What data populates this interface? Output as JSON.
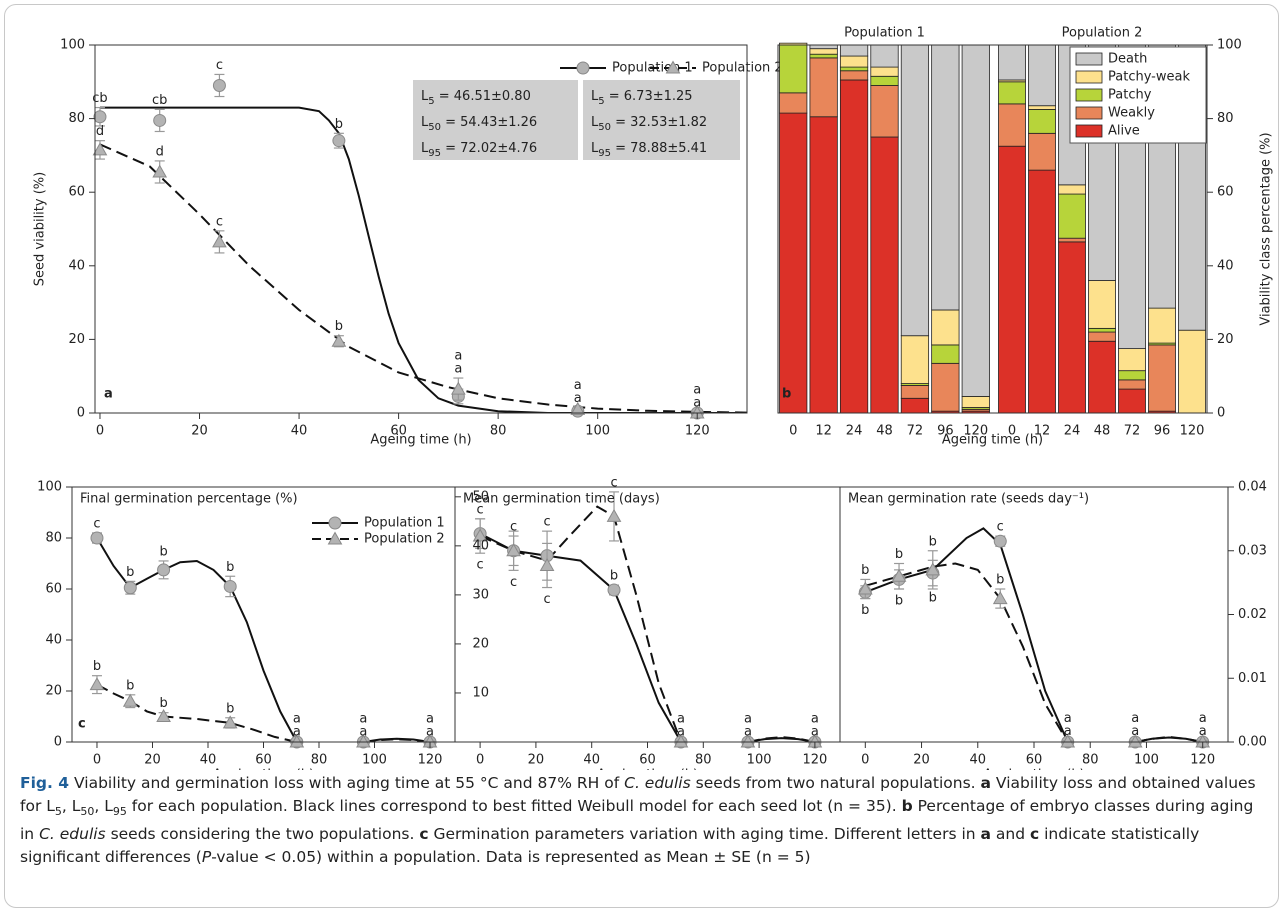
{
  "chart_data": [
    {
      "type": "scatter",
      "panel": "a",
      "xlabel": "Ageing time (h)",
      "ylabel": "Seed viability (%)",
      "xlim": [
        -1,
        130
      ],
      "ylim": [
        0,
        100
      ],
      "xticks": [
        0,
        20,
        40,
        60,
        80,
        100,
        120
      ],
      "yticks": [
        0,
        20,
        40,
        60,
        80,
        100
      ],
      "series": [
        {
          "name": "Population 1",
          "color": "#b3b3b3",
          "marker": "circle",
          "dash": false,
          "x": [
            0,
            12,
            24,
            48,
            72,
            96,
            120
          ],
          "values": [
            80.5,
            79.5,
            89,
            74,
            4.5,
            0.5,
            0
          ],
          "errors": [
            2.5,
            3,
            3,
            2,
            2,
            0.5,
            0.3
          ],
          "letters": [
            "cb",
            "cb",
            "c",
            "b",
            "a",
            "a",
            "a"
          ],
          "fit_x": [
            0,
            10,
            20,
            30,
            40,
            44,
            46,
            48,
            50,
            52,
            54,
            56,
            58,
            60,
            64,
            68,
            72,
            80,
            90,
            130
          ],
          "fit_values": [
            83,
            83,
            83,
            83,
            83,
            82,
            79.5,
            76,
            69,
            59,
            48,
            37,
            27,
            19,
            9,
            4,
            2,
            0.5,
            0,
            0
          ]
        },
        {
          "name": "Population 2",
          "color": "#b3b3b3",
          "marker": "triangle",
          "dash": true,
          "x": [
            0,
            12,
            24,
            48,
            72,
            96,
            120
          ],
          "values": [
            71.5,
            65.5,
            46.5,
            19.5,
            6.5,
            1,
            0
          ],
          "errors": [
            2.5,
            3,
            3,
            1.5,
            3,
            0.5,
            0.3
          ],
          "letters": [
            "d",
            "d",
            "c",
            "b",
            "a",
            "a",
            "a"
          ],
          "fit_x": [
            0,
            10,
            20,
            30,
            40,
            50,
            60,
            70,
            80,
            90,
            100,
            110,
            120,
            130
          ],
          "fit_values": [
            73,
            67,
            54,
            40,
            28,
            18,
            11,
            7,
            4,
            2.3,
            1.2,
            0.6,
            0.3,
            0.1
          ]
        }
      ],
      "stats": [
        [
          {
            "symbol": "L",
            "sub": "5",
            "text": " = 46.51±0.80"
          },
          {
            "symbol": "L",
            "sub": "50",
            "text": " = 54.43±1.26"
          },
          {
            "symbol": "L",
            "sub": "95",
            "text": " = 72.02±4.76"
          }
        ],
        [
          {
            "symbol": "L",
            "sub": "5",
            "text": " = 6.73±1.25"
          },
          {
            "symbol": "L",
            "sub": "50",
            "text": " = 32.53±1.82"
          },
          {
            "symbol": "L",
            "sub": "95",
            "text": " = 78.88±5.41"
          }
        ]
      ]
    },
    {
      "type": "stacked_bar",
      "panel": "b",
      "xlabel": "Ageing time (h)",
      "ylabel": "Viability class percentage (%)",
      "ylim": [
        0,
        100
      ],
      "yticks": [
        0,
        20,
        40,
        60,
        80,
        100
      ],
      "classes": [
        {
          "name": "Alive",
          "color": "#dc3128"
        },
        {
          "name": "Weakly",
          "color": "#e8865a"
        },
        {
          "name": "Patchy",
          "color": "#b7d43a"
        },
        {
          "name": "Patchy-weak",
          "color": "#fde18d"
        },
        {
          "name": "Death",
          "color": "#c9c9c9"
        }
      ],
      "groups": [
        {
          "title": "Population 1",
          "categories": [
            "0",
            "12",
            "24",
            "48",
            "72",
            "96",
            "120"
          ],
          "values": [
            [
              81.5,
              80.5,
              90.5,
              75,
              4,
              0.5,
              0.5
            ],
            [
              5.5,
              16,
              2.5,
              14,
              3.5,
              13,
              0.5
            ],
            [
              13,
              1,
              1,
              2.5,
              0.5,
              5,
              0.5
            ],
            [
              0.5,
              1.5,
              3,
              2.5,
              13,
              9.5,
              3
            ],
            [
              0,
              1,
              3,
              6,
              79,
              72,
              95.5
            ]
          ]
        },
        {
          "title": "Population 2",
          "categories": [
            "0",
            "12",
            "24",
            "48",
            "72",
            "96",
            "120"
          ],
          "values": [
            [
              72.5,
              66,
              46.5,
              19.5,
              6.5,
              0.5,
              0
            ],
            [
              11.5,
              10,
              1,
              2.5,
              2.5,
              18,
              0
            ],
            [
              6,
              6.5,
              12,
              1,
              2.5,
              0.5,
              0
            ],
            [
              0.5,
              1,
              2.5,
              13,
              6,
              9.5,
              22.5
            ],
            [
              9.5,
              16.5,
              38,
              64,
              82.5,
              71.5,
              77.5
            ]
          ]
        }
      ]
    },
    {
      "type": "line",
      "panel": "c",
      "title": "Final germination percentage (%)",
      "xlabel": "Ageing time (h)",
      "xlim": [
        -9,
        129
      ],
      "ylim": [
        0,
        100
      ],
      "xticks": [
        0,
        20,
        40,
        60,
        80,
        100,
        120
      ],
      "yticks": [
        0,
        20,
        40,
        60,
        80,
        100
      ],
      "legend": true,
      "series": [
        {
          "name": "Population 1",
          "color": "#b3b3b3",
          "marker": "circle",
          "dash": false,
          "x": [
            0,
            12,
            24,
            48,
            72,
            96,
            120
          ],
          "values": [
            80,
            60.5,
            67.5,
            61,
            0,
            0,
            0
          ],
          "errors": [
            2,
            2.5,
            3.5,
            4,
            0.3,
            0.3,
            0.3
          ],
          "letters": [
            "c",
            "b",
            "b",
            "b",
            "a",
            "a",
            "a"
          ],
          "fit_x": [
            0,
            6,
            12,
            18,
            24,
            30,
            36,
            42,
            48,
            54,
            60,
            66,
            72,
            84,
            96,
            102,
            108,
            114,
            120
          ],
          "fit_values": [
            80,
            69,
            60.5,
            64,
            67.5,
            70.5,
            71,
            67.5,
            61,
            47,
            28,
            12,
            0,
            null,
            0,
            1,
            1.3,
            1,
            0
          ]
        },
        {
          "name": "Population 2",
          "color": "#b3b3b3",
          "marker": "triangle",
          "dash": true,
          "x": [
            0,
            12,
            24,
            48,
            72,
            96,
            120
          ],
          "values": [
            22.5,
            16,
            10,
            7.5,
            0,
            0,
            0
          ],
          "errors": [
            3.5,
            2.5,
            1.5,
            2,
            0.3,
            0.3,
            0.3
          ],
          "letters": [
            "b",
            "b",
            "b",
            "b",
            "a",
            "a",
            "a"
          ],
          "fit_x": [
            0,
            6,
            12,
            18,
            24,
            36,
            48,
            56,
            64,
            72,
            84,
            96,
            102,
            108,
            114,
            120
          ],
          "fit_values": [
            22.5,
            19,
            16,
            12,
            10,
            9,
            7.5,
            5,
            2,
            0,
            null,
            0,
            0.8,
            1.1,
            0.8,
            0
          ]
        }
      ]
    },
    {
      "type": "line",
      "panel": "c",
      "title": "Mean germination time (days)",
      "xlabel": "Ageing time (h)",
      "xlim": [
        -9,
        129
      ],
      "ylim": [
        0,
        52
      ],
      "xticks": [
        0,
        20,
        40,
        60,
        80,
        100,
        120
      ],
      "yticks": [
        10,
        20,
        30,
        40,
        50
      ],
      "series": [
        {
          "name": "Population 1",
          "color": "#b3b3b3",
          "marker": "circle",
          "dash": false,
          "x": [
            0,
            12,
            24,
            48,
            72,
            96,
            120
          ],
          "values": [
            42.5,
            39,
            38,
            31,
            0,
            0,
            0
          ],
          "errors": [
            3,
            3,
            5,
            1,
            0.2,
            0.2,
            0.2
          ],
          "letters": [
            "c",
            "c",
            "c",
            "b",
            "a",
            "a",
            "a"
          ],
          "fit_x": [
            0,
            12,
            24,
            36,
            48,
            56,
            64,
            72,
            84,
            96,
            102,
            108,
            114,
            120
          ],
          "fit_values": [
            42.5,
            39,
            38,
            37,
            31,
            20,
            8,
            0,
            null,
            0,
            0.6,
            0.8,
            0.6,
            0
          ]
        },
        {
          "name": "Population 2",
          "color": "#b3b3b3",
          "marker": "triangle",
          "dash": true,
          "x": [
            0,
            12,
            24,
            48,
            72,
            96,
            120
          ],
          "values": [
            42,
            39,
            36,
            46,
            0,
            0,
            0
          ],
          "errors": [
            3.5,
            4,
            4.5,
            5,
            0.2,
            0.2,
            0.2
          ],
          "letters": [
            "c",
            "c",
            "c",
            "c",
            "a",
            "a",
            "a"
          ],
          "fit_x": [
            0,
            12,
            24,
            32,
            42,
            48,
            56,
            64,
            72,
            84,
            96,
            102,
            108,
            114,
            120
          ],
          "fit_values": [
            42,
            39,
            37,
            42,
            48,
            46,
            30,
            12,
            0,
            null,
            0,
            0.7,
            1,
            0.7,
            0
          ]
        }
      ]
    },
    {
      "type": "line",
      "panel": "c",
      "title": "Mean germination rate (seeds day⁻¹)",
      "xlabel": "Ageing time (h)",
      "xlim": [
        -9,
        129
      ],
      "ylim": [
        0,
        0.04
      ],
      "xticks": [
        0,
        20,
        40,
        60,
        80,
        100,
        120
      ],
      "yticks": [
        {
          "value": 0,
          "label": "0.00"
        },
        {
          "value": 0.01,
          "label": "0.01"
        },
        {
          "value": 0.02,
          "label": "0.02"
        },
        {
          "value": 0.03,
          "label": "0.03"
        },
        {
          "value": 0.04,
          "label": "0.04"
        }
      ],
      "series": [
        {
          "name": "Population 1",
          "color": "#b3b3b3",
          "marker": "circle",
          "dash": false,
          "x": [
            0,
            12,
            24,
            48,
            72,
            96,
            120
          ],
          "values": [
            0.0235,
            0.0255,
            0.0265,
            0.0315,
            0,
            0,
            0
          ],
          "errors": [
            0.001,
            0.0015,
            0.002,
            0.0008,
            0.0002,
            0.0002,
            0.0002
          ],
          "letters": [
            "b",
            "b",
            "b",
            "c",
            "a",
            "a",
            "a"
          ],
          "fit_x": [
            0,
            12,
            24,
            36,
            42,
            48,
            56,
            64,
            72,
            84,
            96,
            102,
            108,
            114,
            120
          ],
          "fit_values": [
            0.0235,
            0.0255,
            0.027,
            0.032,
            0.0335,
            0.031,
            0.02,
            0.008,
            0,
            null,
            0,
            0.0005,
            0.0007,
            0.0005,
            0
          ]
        },
        {
          "name": "Population 2",
          "color": "#b3b3b3",
          "marker": "triangle",
          "dash": true,
          "x": [
            0,
            12,
            24,
            48,
            72,
            96,
            120
          ],
          "values": [
            0.024,
            0.026,
            0.027,
            0.0225,
            0,
            0,
            0
          ],
          "errors": [
            0.0015,
            0.002,
            0.003,
            0.0015,
            0.0002,
            0.0002,
            0.0002
          ],
          "letters": [
            "b",
            "b",
            "b",
            "b",
            "a",
            "a",
            "a"
          ],
          "fit_x": [
            0,
            12,
            24,
            32,
            40,
            48,
            56,
            64,
            72,
            84,
            96,
            102,
            108,
            114,
            120
          ],
          "fit_values": [
            0.0245,
            0.026,
            0.0275,
            0.028,
            0.027,
            0.0225,
            0.015,
            0.006,
            0,
            null,
            0,
            0.0005,
            0.0008,
            0.0005,
            0
          ]
        }
      ]
    }
  ],
  "caption": [
    {
      "text": "Fig. 4",
      "style": "fig"
    },
    {
      "text": "  Viability and germination loss with aging time at 55 °C and 87% RH of "
    },
    {
      "text": "C. edulis",
      "style": "i"
    },
    {
      "text": " seeds from two natural populations. "
    },
    {
      "text": "a",
      "style": "b"
    },
    {
      "text": " Viability loss and obtained values for L"
    },
    {
      "text": "5",
      "style": "sub"
    },
    {
      "text": ", L"
    },
    {
      "text": "50",
      "style": "sub"
    },
    {
      "text": ", L"
    },
    {
      "text": "95",
      "style": "sub"
    },
    {
      "text": " for each population. Black lines correspond to best fitted Weibull model for each seed lot (n = 35). "
    },
    {
      "text": "b",
      "style": "b"
    },
    {
      "text": " Percentage of embryo classes during aging in "
    },
    {
      "text": "C. edulis",
      "style": "i"
    },
    {
      "text": " seeds considering the two populations. "
    },
    {
      "text": "c",
      "style": "b"
    },
    {
      "text": " Germination parameters variation with aging time. Different letters in "
    },
    {
      "text": "a",
      "style": "b"
    },
    {
      "text": " and "
    },
    {
      "text": "c",
      "style": "b"
    },
    {
      "text": " indicate statistically significant differences ("
    },
    {
      "text": "P",
      "style": "i"
    },
    {
      "text": "-value < 0.05) within a population. Data is represented as Mean ± SE (n = 5)"
    }
  ]
}
